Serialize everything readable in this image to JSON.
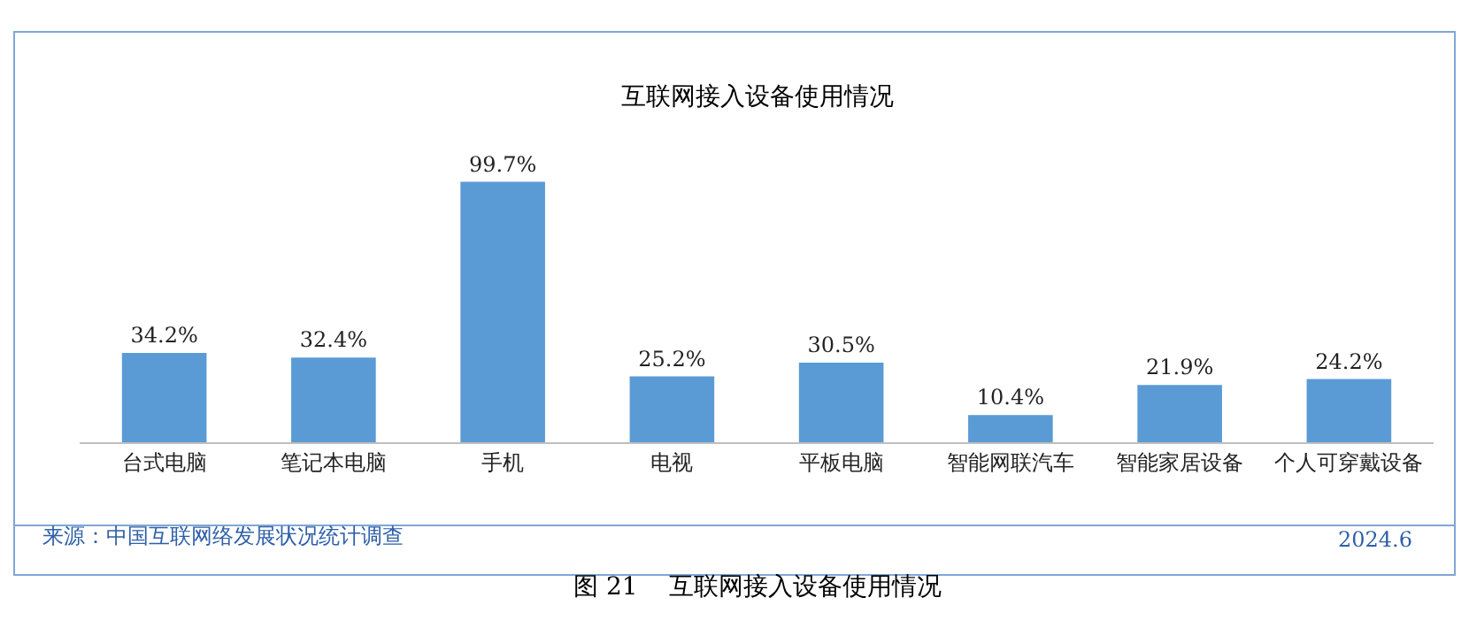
{
  "chart_data": {
    "type": "bar",
    "title": "互联网接入设备使用情况",
    "categories": [
      "台式电脑",
      "笔记本电脑",
      "手机",
      "电视",
      "平板电脑",
      "智能网联汽车",
      "智能家居设备",
      "个人可穿戴设备"
    ],
    "values": [
      34.2,
      32.4,
      99.7,
      25.2,
      30.5,
      10.4,
      21.9,
      24.2
    ],
    "value_labels": [
      "34.2%",
      "32.4%",
      "99.7%",
      "25.2%",
      "30.5%",
      "10.4%",
      "21.9%",
      "24.2%"
    ],
    "color": "#5b9bd5",
    "annotations": [
      "来源：中国互联网络发展状况统计调查",
      "2024.6",
      "图 21    互联网接入设备使用情况"
    ]
  }
}
